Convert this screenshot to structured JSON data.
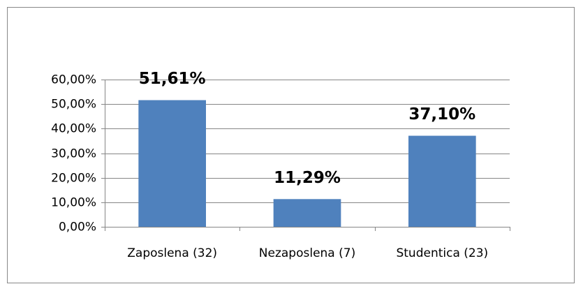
{
  "chart_data": {
    "type": "bar",
    "categories": [
      "Zaposlena (32)",
      "Nezaposlena (7)",
      "Studentica (23)"
    ],
    "values": [
      51.61,
      11.29,
      37.1
    ],
    "value_labels": [
      "51,61%",
      "11,29%",
      "37,10%"
    ],
    "color": "#4f81bd",
    "ylim": [
      0,
      60
    ],
    "yticks": [
      {
        "value": 0,
        "label": "0,00%"
      },
      {
        "value": 10,
        "label": "10,00%"
      },
      {
        "value": 20,
        "label": "20,00%"
      },
      {
        "value": 30,
        "label": "30,00%"
      },
      {
        "value": 40,
        "label": "40,00%"
      },
      {
        "value": 50,
        "label": "50,00%"
      },
      {
        "value": 60,
        "label": "60,00%"
      }
    ],
    "grid": true
  }
}
